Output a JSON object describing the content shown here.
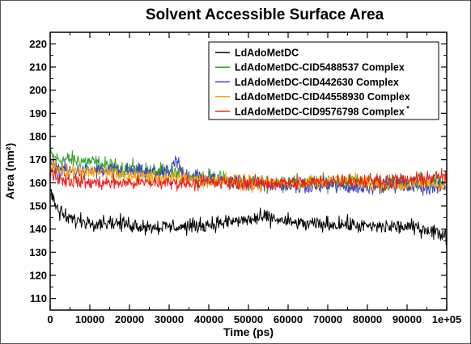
{
  "chart_data": {
    "type": "line",
    "title": "Solvent Accessible Surface Area",
    "xlabel": "Time (ps)",
    "ylabel": "Area (nm²)",
    "xlim": [
      0,
      100000
    ],
    "ylim": [
      105,
      225
    ],
    "xticks": [
      0,
      10000,
      20000,
      30000,
      40000,
      50000,
      60000,
      70000,
      80000,
      90000,
      100000
    ],
    "xtick_labels": [
      "0",
      "10000",
      "20000",
      "30000",
      "40000",
      "50000",
      "60000",
      "70000",
      "80000",
      "90000",
      "1e+05"
    ],
    "yticks": [
      110,
      120,
      130,
      140,
      150,
      160,
      170,
      180,
      190,
      200,
      210,
      220
    ],
    "grid": false,
    "legend_position": "top-right",
    "series": [
      {
        "name": "LdAdoMetDC",
        "color": "#000000",
        "x": [
          0,
          1000,
          2000,
          4000,
          6000,
          10000,
          15000,
          20000,
          25000,
          30000,
          35000,
          40000,
          45000,
          50000,
          55000,
          60000,
          65000,
          70000,
          75000,
          80000,
          85000,
          90000,
          95000,
          100000
        ],
        "values": [
          156,
          152,
          148,
          145,
          144,
          143,
          143,
          142,
          141,
          141,
          141,
          142,
          143,
          144,
          145,
          143,
          142,
          142,
          142,
          141,
          141,
          141,
          140,
          137
        ]
      },
      {
        "name": "LdAdoMetDC-CID5488537 Complex",
        "color": "#2ca02c",
        "x": [
          0,
          2000,
          5000,
          10000,
          15000,
          20000,
          25000,
          30000,
          35000,
          40000,
          45000,
          50000,
          55000,
          60000,
          65000,
          70000,
          75000,
          80000,
          85000,
          90000,
          95000,
          100000
        ],
        "values": [
          172,
          170,
          170,
          169,
          167,
          166,
          165,
          164,
          163,
          162,
          161,
          160,
          160,
          160,
          160,
          160,
          161,
          160,
          160,
          160,
          161,
          161
        ]
      },
      {
        "name": "LdAdoMetDC-CID442630 Complex",
        "color": "#3a43c9",
        "x": [
          0,
          2000,
          5000,
          10000,
          15000,
          20000,
          25000,
          30000,
          32000,
          35000,
          40000,
          45000,
          50000,
          55000,
          60000,
          65000,
          70000,
          75000,
          80000,
          85000,
          90000,
          95000,
          100000
        ],
        "values": [
          168,
          166,
          165,
          165,
          165,
          165,
          164,
          164,
          166,
          163,
          162,
          161,
          160,
          159,
          159,
          158,
          159,
          158,
          158,
          159,
          159,
          158,
          158
        ]
      },
      {
        "name": "LdAdoMetDC-CID44558930 Complex",
        "color": "#ffa500",
        "x": [
          0,
          2000,
          5000,
          10000,
          15000,
          20000,
          25000,
          30000,
          35000,
          40000,
          45000,
          50000,
          55000,
          60000,
          65000,
          70000,
          75000,
          80000,
          85000,
          90000,
          95000,
          100000
        ],
        "values": [
          168,
          166,
          165,
          165,
          164,
          163,
          163,
          162,
          162,
          161,
          161,
          160,
          160,
          160,
          160,
          161,
          161,
          160,
          159,
          159,
          160,
          159
        ]
      },
      {
        "name": "LdAdoMetDC-CID9576798 Complex",
        "name_suffix": "*",
        "color": "#ee1c1c",
        "x": [
          0,
          2000,
          5000,
          10000,
          15000,
          20000,
          25000,
          30000,
          35000,
          40000,
          45000,
          50000,
          55000,
          60000,
          65000,
          70000,
          75000,
          80000,
          85000,
          90000,
          95000,
          100000
        ],
        "values": [
          165,
          162,
          161,
          160,
          160,
          160,
          160,
          160,
          160,
          160,
          160,
          160,
          160,
          160,
          160,
          161,
          161,
          161,
          161,
          161,
          162,
          163
        ]
      }
    ]
  }
}
